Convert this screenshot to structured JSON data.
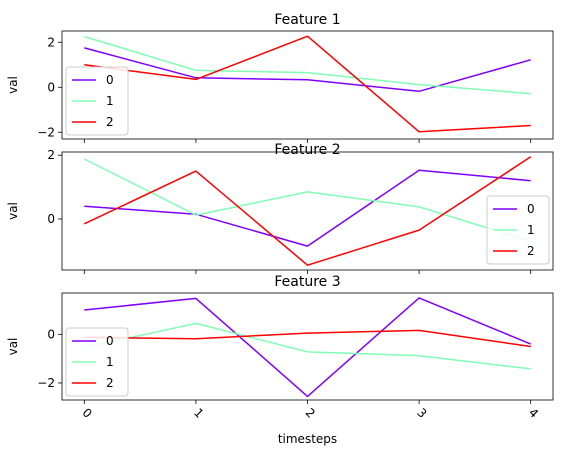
{
  "chart_data": [
    {
      "type": "line",
      "title": "Feature 1",
      "xlabel": "",
      "ylabel": "val",
      "x": [
        0,
        1,
        2,
        3,
        4
      ],
      "ylim": [
        -2.3,
        2.5
      ],
      "yticks": [
        2,
        0,
        -2
      ],
      "ytick_labels": [
        "2",
        "0",
        "−2"
      ],
      "show_xtick_labels": false,
      "legend": "left",
      "grid": false,
      "series": [
        {
          "name": "0",
          "color": "#8000ff",
          "values": [
            1.75,
            0.42,
            0.33,
            -0.18,
            1.22
          ]
        },
        {
          "name": "1",
          "color": "#80ffb4",
          "values": [
            2.25,
            0.75,
            0.65,
            0.12,
            -0.28
          ]
        },
        {
          "name": "2",
          "color": "#ff0000",
          "values": [
            1.0,
            0.35,
            2.27,
            -1.98,
            -1.7
          ]
        }
      ]
    },
    {
      "type": "line",
      "title": "Feature 2",
      "xlabel": "",
      "ylabel": "val",
      "x": [
        0,
        1,
        2,
        3,
        4
      ],
      "ylim": [
        -1.6,
        2.1
      ],
      "yticks": [
        2,
        0
      ],
      "ytick_labels": [
        "2",
        "0"
      ],
      "show_xtick_labels": false,
      "legend": "right",
      "grid": false,
      "series": [
        {
          "name": "0",
          "color": "#8000ff",
          "values": [
            0.4,
            0.15,
            -0.85,
            1.53,
            1.2
          ]
        },
        {
          "name": "1",
          "color": "#80ffb4",
          "values": [
            1.88,
            0.12,
            0.85,
            0.38,
            -0.7
          ]
        },
        {
          "name": "2",
          "color": "#ff0000",
          "values": [
            -0.15,
            1.5,
            -1.45,
            -0.35,
            1.95
          ]
        }
      ]
    },
    {
      "type": "line",
      "title": "Feature 3",
      "xlabel": "timesteps",
      "ylabel": "val",
      "x": [
        0,
        1,
        2,
        3,
        4
      ],
      "ylim": [
        -2.7,
        1.7
      ],
      "yticks": [
        0,
        -2
      ],
      "ytick_labels": [
        "0",
        "−2"
      ],
      "show_xtick_labels": true,
      "xtick_labels": [
        "0",
        "1",
        "2",
        "3",
        "4"
      ],
      "legend": "left",
      "grid": false,
      "series": [
        {
          "name": "0",
          "color": "#8000ff",
          "values": [
            1.0,
            1.48,
            -2.55,
            1.5,
            -0.4
          ]
        },
        {
          "name": "1",
          "color": "#80ffb4",
          "values": [
            -0.55,
            0.45,
            -0.72,
            -0.88,
            -1.42
          ]
        },
        {
          "name": "2",
          "color": "#ff0000",
          "values": [
            -0.12,
            -0.18,
            0.05,
            0.16,
            -0.5
          ]
        }
      ]
    }
  ]
}
